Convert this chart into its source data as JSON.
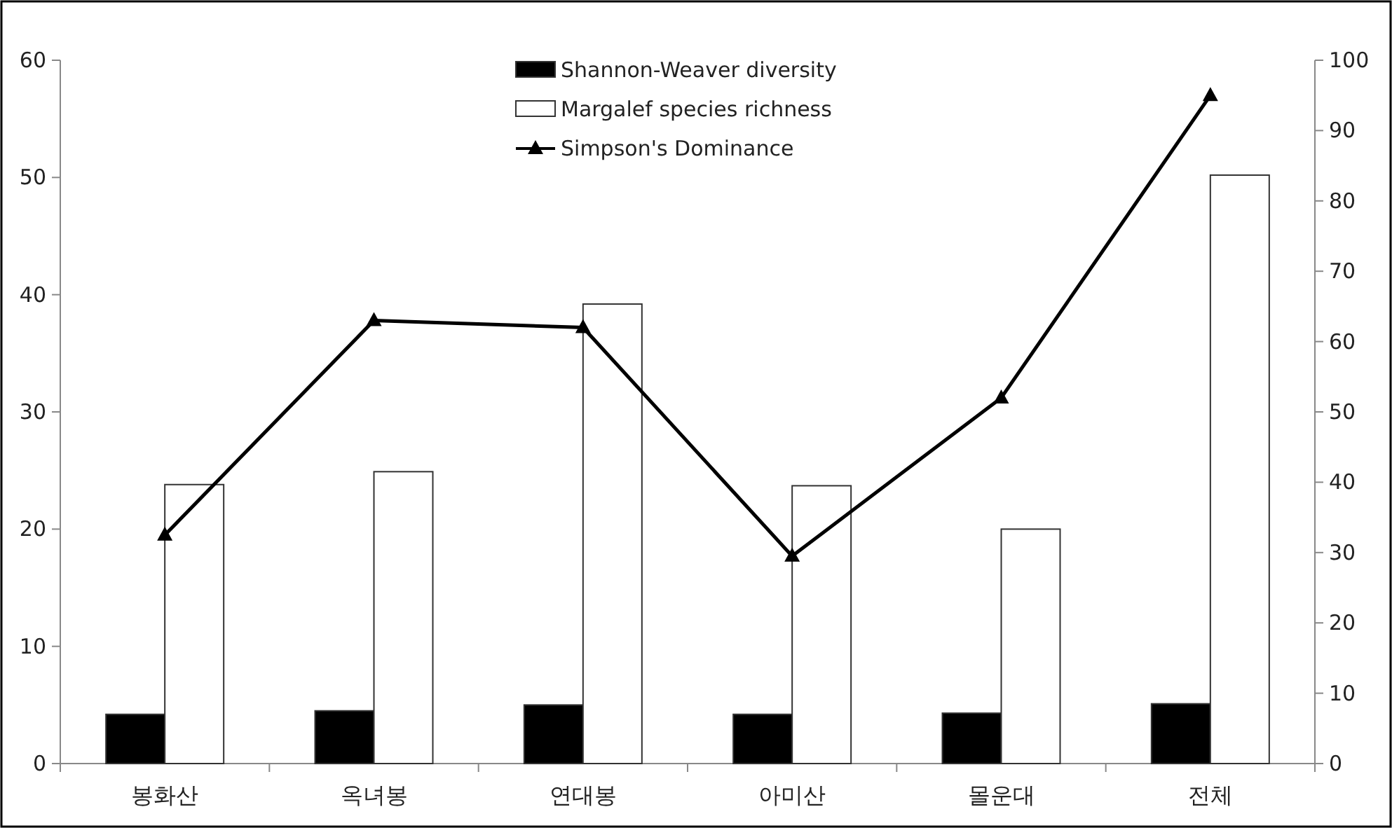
{
  "chart_data": {
    "type": "bar",
    "categories": [
      "봉화산",
      "옥녀봉",
      "연대봉",
      "아미산",
      "몰운대",
      "전체"
    ],
    "series": [
      {
        "name": "Shannon-Weaver diversity",
        "color": "#000000",
        "values": [
          4.2,
          4.5,
          5.0,
          4.2,
          4.3,
          5.1
        ]
      },
      {
        "name": "Margalef species richness",
        "color": "#ffffff",
        "values": [
          23.8,
          24.9,
          39.2,
          23.7,
          20.0,
          50.2
        ]
      },
      {
        "name": "Simpson's Dominance",
        "type": "line",
        "axis": "y2",
        "color": "#000000",
        "marker": "triangle",
        "values": [
          32.5,
          63,
          62,
          29.5,
          52,
          95
        ]
      }
    ],
    "ylim": [
      0,
      60
    ],
    "yticks": [
      0,
      10,
      20,
      30,
      40,
      50,
      60
    ],
    "y2lim": [
      0,
      100
    ],
    "y2ticks": [
      0,
      10,
      20,
      30,
      40,
      50,
      60,
      70,
      80,
      90,
      100
    ],
    "grid": false,
    "legend": "top"
  }
}
